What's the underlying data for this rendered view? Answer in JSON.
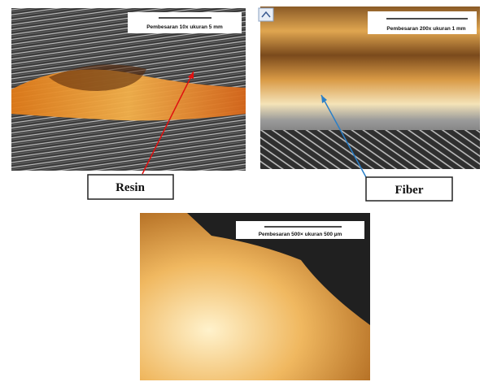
{
  "figure": {
    "panels": [
      {
        "scale_label": "Pembesaran 10x ukuran 5 mm"
      },
      {
        "scale_label": "Pembesaran 200x ukuran 1 mm"
      },
      {
        "scale_label": "Pembesaran 500× ukuran 500 µm"
      }
    ],
    "callouts": [
      "Resin",
      "Fiber"
    ]
  }
}
